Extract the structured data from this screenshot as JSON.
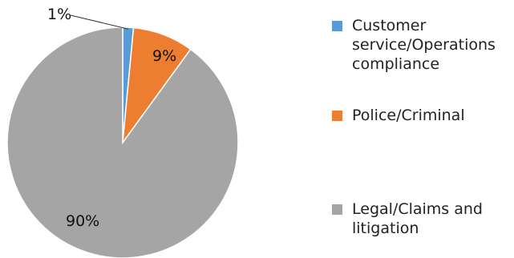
{
  "chart_data": {
    "type": "pie",
    "title": "",
    "slices": [
      {
        "name": "Customer service/Operations compliance",
        "value": 1.5,
        "label": "1%",
        "color": "#5B9BD5"
      },
      {
        "name": "Police/Criminal",
        "value": 8.5,
        "label": "9%",
        "color": "#ED7D31"
      },
      {
        "name": "Legal/Claims and litigation",
        "value": 90,
        "label": "90%",
        "color": "#A5A5A5"
      }
    ],
    "legend_position": "right"
  }
}
